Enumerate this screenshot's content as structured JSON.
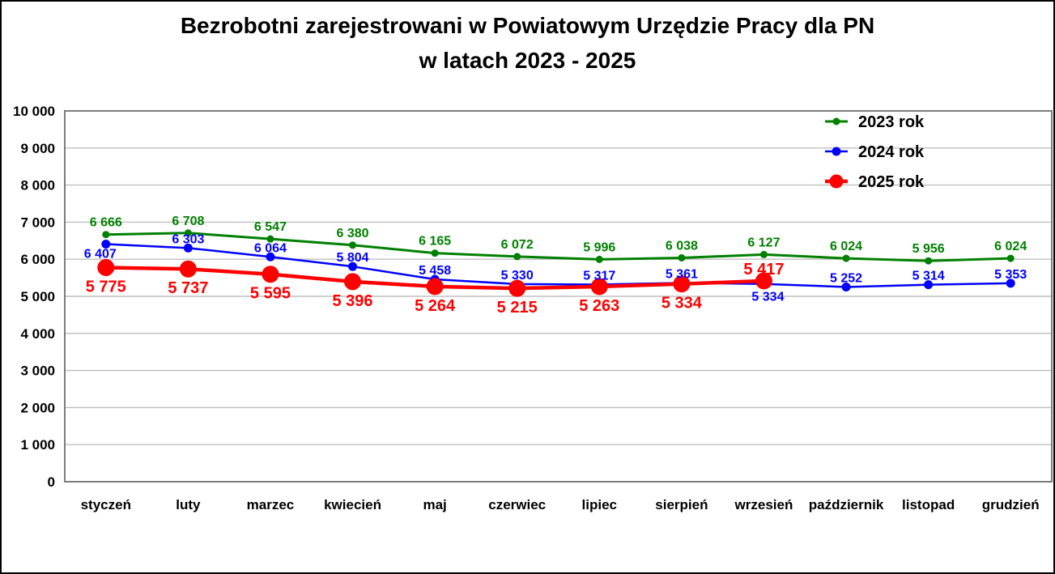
{
  "title": {
    "line1": "Bezrobotni zarejestrowani w Powiatowym Urzędzie Pracy dla PN",
    "line2": "w latach 2023 - 2025"
  },
  "colors": {
    "green": "#008000",
    "blue": "#0000ff",
    "red": "#ff0000",
    "gridline": "#bfbfbf",
    "plot_border": "#6f6f6f",
    "text": "#000000",
    "background": "#ffffff"
  },
  "chart_data": {
    "type": "line",
    "title": "Bezrobotni zarejestrowani w Powiatowym Urzędzie Pracy dla PN w latach 2023 - 2025",
    "categories": [
      "styczeń",
      "luty",
      "marzec",
      "kwiecień",
      "maj",
      "czerwiec",
      "lipiec",
      "sierpień",
      "wrzesień",
      "październik",
      "listopad",
      "grudzień"
    ],
    "series": [
      {
        "name": "2023 rok",
        "color_key": "green",
        "values": [
          6666,
          6708,
          6547,
          6380,
          6165,
          6072,
          5996,
          6038,
          6127,
          6024,
          5956,
          6024
        ]
      },
      {
        "name": "2024 rok",
        "color_key": "blue",
        "values": [
          6407,
          6303,
          6064,
          5804,
          5458,
          5330,
          5317,
          5361,
          5334,
          5252,
          5314,
          5353
        ]
      },
      {
        "name": "2025 rok",
        "color_key": "red",
        "values": [
          5775,
          5737,
          5595,
          5396,
          5264,
          5215,
          5263,
          5334,
          5417,
          null,
          null,
          null
        ]
      }
    ],
    "ylim": [
      0,
      10000
    ],
    "ytick_step": 1000,
    "ytick_labels": [
      "0",
      "1 000",
      "2 000",
      "3 000",
      "4 000",
      "5 000",
      "6 000",
      "7 000",
      "8 000",
      "9 000",
      "10 000"
    ],
    "grid": "horizontal",
    "data_labels": true,
    "legend_position": "top-right",
    "legend_entries": [
      "2023 rok",
      "2024 rok",
      "2025 rok"
    ]
  }
}
